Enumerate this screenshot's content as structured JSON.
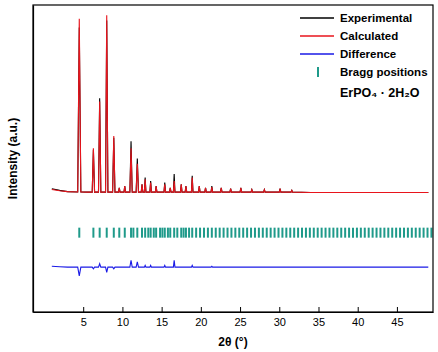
{
  "chart_data": {
    "type": "line",
    "xlabel": "2θ (°)",
    "ylabel": "Intensity (a.u.)",
    "annotations": [
      "ErPO₄ · 2H₂O"
    ],
    "xlim": [
      -1.4,
      49.6
    ],
    "xticks": [
      5,
      10,
      15,
      20,
      25,
      30,
      35,
      40,
      45
    ],
    "ylim": [
      -69,
      109
    ],
    "tick_labels": "x",
    "grid": false,
    "legend": "upper right",
    "x": [
      1.0,
      2.0,
      3.0,
      4.3,
      4.5,
      4.7,
      5.5,
      6.15,
      6.3,
      6.45,
      6.95,
      7.1,
      7.25,
      7.85,
      8.0,
      8.15,
      8.75,
      8.9,
      9.05,
      9.5,
      9.6,
      9.7,
      10.2,
      10.3,
      10.4,
      10.95,
      11.1,
      11.25,
      11.75,
      11.9,
      12.05,
      12.4,
      12.5,
      12.6,
      12.8,
      12.9,
      13.0,
      13.5,
      13.6,
      13.7,
      14.2,
      14.3,
      14.4,
      15.3,
      15.4,
      15.5,
      16.0,
      16.1,
      16.2,
      16.5,
      16.6,
      16.7,
      17.4,
      17.5,
      17.6,
      18.0,
      18.1,
      18.2,
      18.8,
      18.9,
      19.0,
      19.7,
      19.8,
      19.9,
      20.5,
      20.6,
      20.7,
      21.3,
      21.4,
      21.5,
      22.5,
      22.6,
      22.7,
      23.7,
      23.8,
      23.9,
      25.0,
      25.1,
      25.2,
      26.4,
      26.5,
      26.6,
      28.0,
      28.1,
      28.2,
      30.0,
      30.1,
      30.2,
      31.5,
      31.6,
      31.7,
      34,
      36,
      38,
      40,
      42,
      44,
      46,
      48,
      49
    ],
    "series": [
      {
        "name": "Experimental",
        "color": "#000000",
        "line_style": "solid",
        "values": [
          2.5,
          1.5,
          0.8,
          0.6,
          96,
          0.6,
          0.5,
          0.5,
          25,
          0.5,
          0.5,
          55,
          0.5,
          0.5,
          100,
          0.5,
          0.5,
          32,
          0.5,
          0.5,
          3,
          0.5,
          0.5,
          4,
          0.5,
          0.5,
          30,
          0.5,
          0.5,
          20,
          0.5,
          0.5,
          5,
          0.5,
          0.5,
          9,
          0.5,
          0.5,
          7,
          0.5,
          0.5,
          4,
          0.5,
          0.5,
          6,
          0.5,
          0.5,
          3,
          0.5,
          0.5,
          11,
          0.5,
          0.5,
          5,
          0.5,
          0.5,
          4,
          0.5,
          0.5,
          10,
          0.5,
          0.5,
          4,
          0.5,
          0.5,
          3,
          0.5,
          0.5,
          4,
          0.5,
          0.5,
          3,
          0.5,
          0.5,
          2.5,
          0.5,
          0.5,
          3,
          0.5,
          0.5,
          2,
          0.5,
          0.5,
          2,
          0.5,
          0.5,
          2.5,
          0.5,
          0.5,
          1.5,
          0.5,
          0.3,
          0.3,
          0.3,
          0.3,
          0.3,
          0.3,
          0.3,
          0.3,
          0.3
        ]
      },
      {
        "name": "Calculated",
        "color": "#e8141c",
        "line_style": "solid",
        "values": [
          2.0,
          1.3,
          0.8,
          0.6,
          101,
          0.6,
          0.5,
          0.5,
          26,
          0.5,
          0.5,
          53,
          0.5,
          0.5,
          103,
          0.5,
          0.5,
          33,
          0.5,
          0.5,
          3,
          0.5,
          0.5,
          4,
          0.5,
          0.5,
          26,
          0.5,
          0.5,
          17,
          0.5,
          0.5,
          5,
          0.5,
          0.5,
          8,
          0.5,
          0.5,
          6,
          0.5,
          0.5,
          4,
          0.5,
          0.5,
          5,
          0.5,
          0.5,
          3,
          0.5,
          0.5,
          7,
          0.5,
          0.5,
          5,
          0.5,
          0.5,
          4,
          0.5,
          0.5,
          9,
          0.5,
          0.5,
          4,
          0.5,
          0.5,
          3,
          0.5,
          0.5,
          3.5,
          0.5,
          0.5,
          3,
          0.5,
          0.5,
          2.5,
          0.5,
          0.5,
          3,
          0.5,
          0.5,
          2,
          0.5,
          0.5,
          2,
          0.5,
          0.5,
          2.5,
          0.5,
          0.5,
          1.5,
          0.5,
          0.3,
          0.3,
          0.3,
          0.3,
          0.3,
          0.3,
          0.3,
          0.3,
          0.3
        ]
      },
      {
        "name": "Difference",
        "color": "#1a1ae6",
        "line_style": "solid",
        "values": [
          -42.5,
          -42.8,
          -43,
          -43,
          -48,
          -43,
          -43,
          -43,
          -44,
          -43,
          -43,
          -41,
          -43,
          -43,
          -46,
          -43,
          -43,
          -44,
          -43,
          -43,
          -43,
          -43,
          -43,
          -43,
          -43,
          -43,
          -39,
          -43,
          -43,
          -40,
          -43,
          -43,
          -43,
          -43,
          -43,
          -42,
          -43,
          -43,
          -42,
          -43,
          -43,
          -43,
          -43,
          -43,
          -42,
          -43,
          -43,
          -43,
          -43,
          -43,
          -39,
          -43,
          -43,
          -43,
          -43,
          -43,
          -43,
          -43,
          -43,
          -42,
          -43,
          -43,
          -43,
          -43,
          -43,
          -43,
          -43,
          -43,
          -42.5,
          -43,
          -43,
          -43,
          -43,
          -43,
          -43,
          -43,
          -43,
          -43,
          -43,
          -43,
          -43,
          -43,
          -43,
          -43,
          -43,
          -43,
          -43,
          -43,
          -43,
          -43,
          -43,
          -43,
          -43,
          -43,
          -43,
          -43,
          -43,
          -43,
          -43,
          -43
        ]
      },
      {
        "name": "Bragg positions",
        "color": "#1f9a8a",
        "type": "scatter",
        "marker": "vline",
        "x": [
          4.5,
          6.3,
          7.1,
          8.0,
          8.9,
          9.6,
          10.3,
          11.1,
          11.4,
          11.9,
          12.5,
          12.9,
          13.3,
          13.6,
          14.0,
          14.3,
          14.8,
          15.1,
          15.4,
          15.8,
          16.1,
          16.6,
          17.0,
          17.5,
          17.8,
          18.1,
          18.5,
          18.9,
          19.4,
          19.9,
          20.4,
          20.9,
          21.4,
          21.9,
          22.4,
          22.9,
          23.4,
          23.9,
          24.4,
          24.9,
          25.4,
          25.9,
          26.4,
          26.9,
          27.4,
          27.9,
          28.4,
          28.9,
          29.4,
          29.9,
          30.4,
          30.9,
          31.4,
          31.9,
          32.4,
          32.9,
          33.4,
          33.9,
          34.4,
          34.9,
          35.4,
          35.9,
          36.4,
          36.9,
          37.4,
          37.9,
          38.4,
          38.9,
          39.4,
          39.9,
          40.4,
          40.9,
          41.4,
          41.9,
          42.4,
          42.9,
          43.4,
          43.9,
          44.4,
          44.9,
          45.4,
          45.9,
          46.4,
          46.9,
          47.4,
          47.9,
          48.4,
          48.9,
          49.4
        ],
        "values": [
          -23,
          -23,
          -23,
          -23,
          -23,
          -23,
          -23,
          -23,
          -23,
          -23,
          -23,
          -23,
          -23,
          -23,
          -23,
          -23,
          -23,
          -23,
          -23,
          -23,
          -23,
          -23,
          -23,
          -23,
          -23,
          -23,
          -23,
          -23,
          -23,
          -23,
          -23,
          -23,
          -23,
          -23,
          -23,
          -23,
          -23,
          -23,
          -23,
          -23,
          -23,
          -23,
          -23,
          -23,
          -23,
          -23,
          -23,
          -23,
          -23,
          -23,
          -23,
          -23,
          -23,
          -23,
          -23,
          -23,
          -23,
          -23,
          -23,
          -23,
          -23,
          -23,
          -23,
          -23,
          -23,
          -23,
          -23,
          -23,
          -23,
          -23,
          -23,
          -23,
          -23,
          -23,
          -23,
          -23,
          -23,
          -23,
          -23,
          -23,
          -23,
          -23,
          -23,
          -23,
          -23,
          -23,
          -23,
          -23,
          -23
        ]
      }
    ]
  }
}
